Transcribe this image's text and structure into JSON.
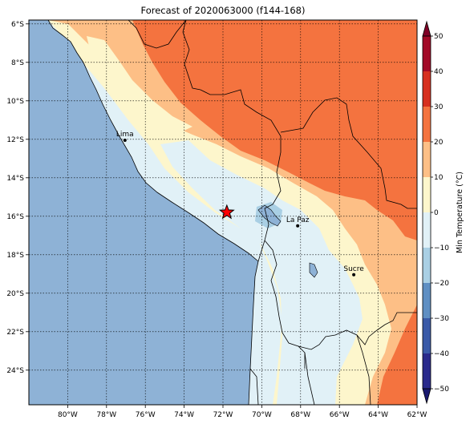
{
  "title": "Forecast of 2020063000 (f144-168)",
  "map": {
    "lon_range": [
      -82,
      -62
    ],
    "lat_range": [
      -25.8,
      -5.8
    ],
    "lon_ticks": [
      -80,
      -78,
      -76,
      -74,
      -72,
      -70,
      -68,
      -66,
      -64,
      -62
    ],
    "lon_tick_labels": [
      "80°W",
      "78°W",
      "76°W",
      "74°W",
      "72°W",
      "70°W",
      "68°W",
      "66°W",
      "64°W",
      "62°W"
    ],
    "lat_ticks": [
      -6,
      -8,
      -10,
      -12,
      -14,
      -16,
      -18,
      -20,
      -22,
      -24
    ],
    "lat_tick_labels": [
      "6°S",
      "8°S",
      "10°S",
      "12°S",
      "14°S",
      "16°S",
      "18°S",
      "20°S",
      "22°S",
      "24°S"
    ],
    "grid": true,
    "ocean_color": "#8eb2d6"
  },
  "cities": [
    {
      "name": "Lima",
      "lon": -77.05,
      "lat": -12.05
    },
    {
      "name": "La Paz",
      "lon": -68.15,
      "lat": -16.5
    },
    {
      "name": "Sucre",
      "lon": -65.26,
      "lat": -19.04
    }
  ],
  "marker": {
    "type": "star",
    "lon": -71.8,
    "lat": -15.8,
    "color": "#ff0000"
  },
  "colorbar": {
    "label": "Min Temperature (°C)",
    "min": -50,
    "max": 50,
    "ticks": [
      -50,
      -40,
      -30,
      -20,
      -10,
      0,
      10,
      20,
      30,
      40,
      50
    ],
    "tick_labels": [
      "−50",
      "−40",
      "−30",
      "−20",
      "−10",
      "0",
      "10",
      "20",
      "30",
      "40",
      "50"
    ],
    "bins": [
      {
        "from": -50,
        "to": -40,
        "color": "#2a2a8c"
      },
      {
        "from": -40,
        "to": -30,
        "color": "#3a5aa8"
      },
      {
        "from": -30,
        "to": -20,
        "color": "#5f8fc3"
      },
      {
        "from": -20,
        "to": -10,
        "color": "#a9cfe4"
      },
      {
        "from": -10,
        "to": 0,
        "color": "#e1f1f7"
      },
      {
        "from": 0,
        "to": 10,
        "color": "#fdf6cc"
      },
      {
        "from": 10,
        "to": 20,
        "color": "#fdbf86"
      },
      {
        "from": 20,
        "to": 30,
        "color": "#f4733f"
      },
      {
        "from": 30,
        "to": 40,
        "color": "#d7301f"
      },
      {
        "from": 40,
        "to": 50,
        "color": "#a20a27"
      }
    ],
    "under_color": "#191970",
    "over_color": "#7f0026"
  }
}
